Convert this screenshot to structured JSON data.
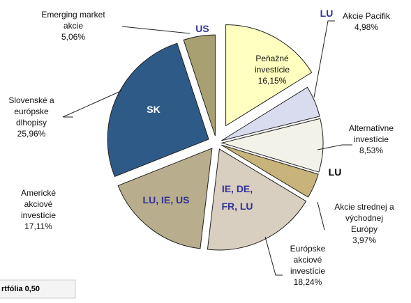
{
  "chart_data": {
    "type": "pie",
    "categories": [
      "Peňažné investície",
      "Akcie Pacifik",
      "Alternatívne investície",
      "Akcie strednej a východnej Európy",
      "Európske akciové investície",
      "Americké akciové investície",
      "Slovenské a európske dlhopisy",
      "Emerging market akcie"
    ],
    "values": [
      16.15,
      4.98,
      8.53,
      3.97,
      18.24,
      17.11,
      25.96,
      5.06
    ],
    "value_labels": [
      "16,15%",
      "4,98%",
      "8,53%",
      "3,97%",
      "18,24%",
      "17,11%",
      "25,96%",
      "5,06%"
    ],
    "colors": [
      "#ffffc0",
      "#d9dcef",
      "#f2f2e8",
      "#c8b47a",
      "#d8cfc0",
      "#b8ad8c",
      "#2e5a88",
      "#a8a070"
    ],
    "annotations": [
      "US",
      "LU",
      "SK",
      "LU",
      "LU, IE, US",
      "IE, DE, FR, LU"
    ],
    "footnote": "rtfólia 0,50"
  }
}
